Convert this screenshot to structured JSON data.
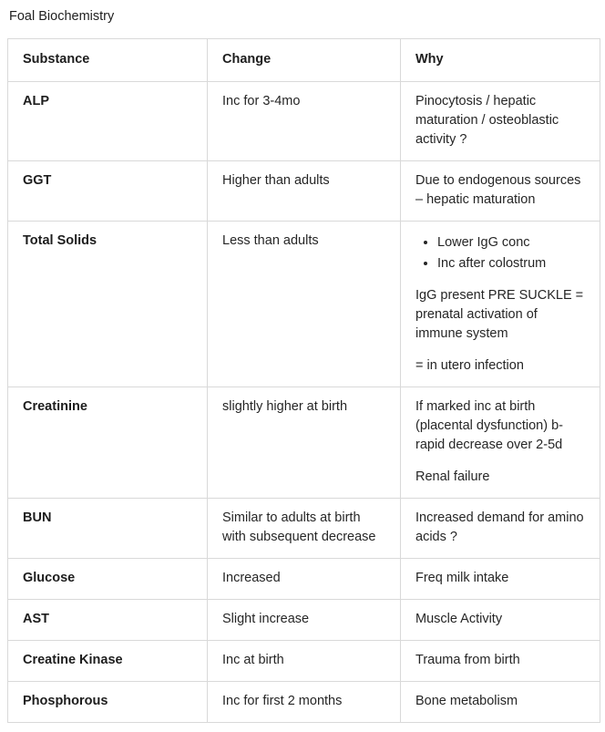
{
  "page": {
    "title": "Foal Biochemistry"
  },
  "table": {
    "headers": [
      "Substance",
      "Change",
      "Why"
    ],
    "rows": [
      {
        "substance": "ALP",
        "change": "Inc for 3-4mo",
        "why": "Pinocytosis / hepatic maturation / osteoblastic activity ?"
      },
      {
        "substance": "GGT",
        "change": "Higher than adults",
        "why": "Due to endogenous sources – hepatic maturation"
      },
      {
        "substance": "Total Solids",
        "change": "Less than adults",
        "why_bullets": [
          "Lower IgG conc",
          "Inc after colostrum"
        ],
        "why_para1": "IgG present PRE SUCKLE = prenatal activation of immune system",
        "why_para2": "= in utero infection"
      },
      {
        "substance": "Creatinine",
        "change": "slightly higher at birth",
        "why_para1": "If marked inc at birth (placental dysfunction) b-rapid decrease over 2-5d",
        "why_para2": "Renal failure"
      },
      {
        "substance": "BUN",
        "change": "Similar to adults at birth with subsequent decrease",
        "why": "Increased demand for amino acids ?"
      },
      {
        "substance": "Glucose",
        "change": "Increased",
        "why": "Freq milk intake"
      },
      {
        "substance": "AST",
        "change": "Slight increase",
        "why": "Muscle Activity"
      },
      {
        "substance": "Creatine Kinase",
        "change": "Inc at birth",
        "why": "Trauma from birth"
      },
      {
        "substance": "Phosphorous",
        "change": "Inc for first 2 months",
        "why": "Bone metabolism"
      }
    ]
  }
}
